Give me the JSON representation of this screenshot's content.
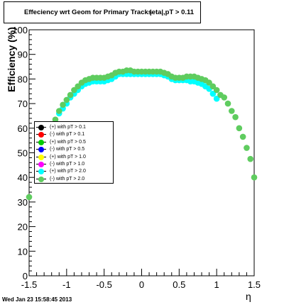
{
  "title": "Effeciency wrt Geom for Primary Tracks, pT > 0.11",
  "title_main": "Effeciency wrt Geom for Primary Tracks",
  "title_overlap": "|eta|,pT > 0.11",
  "footer": "Wed Jan 23 15:58:45 2013",
  "chart_data": {
    "type": "scatter",
    "title": "Effeciency wrt Geom for Primary Tracks, pT > 0.11",
    "xlabel": "η",
    "ylabel": "Efficiency (%)",
    "xlim": [
      -1.5,
      1.5
    ],
    "ylim": [
      0,
      100
    ],
    "x_ticks": [
      "-1.5",
      "-1",
      "-0.5",
      "0",
      "0.5",
      "1",
      "1.5"
    ],
    "y_ticks": [
      "0",
      "10",
      "20",
      "30",
      "40",
      "50",
      "60",
      "70",
      "80",
      "90",
      "100"
    ],
    "legend": [
      {
        "label": "(+) with pT > 0.1",
        "color": "#000000"
      },
      {
        "label": "(-) with pT > 0.1",
        "color": "#ff0000"
      },
      {
        "label": "(+) with pT > 0.5",
        "color": "#00cc00"
      },
      {
        "label": "(-) with pT > 0.5",
        "color": "#0000ff"
      },
      {
        "label": "(+) with pT > 1.0",
        "color": "#ffff00"
      },
      {
        "label": "(-) with pT > 1.0",
        "color": "#ff00ff"
      },
      {
        "label": "(+) with pT > 2.0",
        "color": "#00ffff"
      },
      {
        "label": "(-) with pT > 2.0",
        "color": "#5fcc5f"
      }
    ],
    "series": [
      {
        "name": "(+) with pT > 2.0",
        "color": "#00ffff",
        "x": [
          -1.1,
          -1.05,
          -1.0,
          -0.95,
          -0.9,
          -0.85,
          -0.8,
          -0.75,
          -0.7,
          -0.65,
          -0.6,
          -0.55,
          -0.5,
          -0.45,
          -0.4,
          -0.35,
          -0.3,
          -0.25,
          -0.2,
          -0.15,
          -0.1,
          -0.05,
          0.0,
          0.05,
          0.1,
          0.15,
          0.2,
          0.25,
          0.3,
          0.35,
          0.4,
          0.45,
          0.5,
          0.55,
          0.6,
          0.65,
          0.7,
          0.75,
          0.8,
          0.85,
          0.9,
          0.95,
          1.0
        ],
        "y": [
          66,
          68,
          70,
          72.5,
          74,
          75.5,
          77,
          78,
          78.5,
          79,
          79,
          79,
          79,
          79.5,
          80,
          81,
          82,
          82,
          82,
          82,
          82,
          82,
          82,
          82,
          82,
          82,
          82,
          82,
          81.5,
          81,
          80,
          79.5,
          79.5,
          79.5,
          79.5,
          79,
          79,
          78.5,
          78,
          77,
          76,
          74,
          72
        ]
      },
      {
        "name": "(-) with pT > 2.0",
        "color": "#5fcc5f",
        "x": [
          -1.5,
          -1.15,
          -1.1,
          -1.05,
          -1.0,
          -0.95,
          -0.9,
          -0.85,
          -0.8,
          -0.75,
          -0.7,
          -0.65,
          -0.6,
          -0.55,
          -0.5,
          -0.45,
          -0.4,
          -0.35,
          -0.3,
          -0.25,
          -0.2,
          -0.15,
          -0.1,
          -0.05,
          0.0,
          0.05,
          0.1,
          0.15,
          0.2,
          0.25,
          0.3,
          0.35,
          0.4,
          0.45,
          0.5,
          0.55,
          0.6,
          0.65,
          0.7,
          0.75,
          0.8,
          0.85,
          0.9,
          0.95,
          1.0,
          1.05,
          1.1,
          1.15,
          1.2,
          1.25,
          1.3,
          1.35,
          1.4,
          1.45,
          1.5
        ],
        "y": [
          32,
          63.5,
          67,
          69.5,
          71.5,
          73.5,
          75.5,
          77,
          78.5,
          79.5,
          80,
          80.5,
          80.5,
          80.5,
          80.5,
          81,
          81.5,
          82.5,
          83,
          83,
          83.5,
          83.5,
          83,
          83,
          83,
          83,
          83,
          83,
          83,
          83,
          82.5,
          82,
          81,
          80.5,
          80.5,
          80.5,
          81,
          81,
          81,
          80.5,
          80,
          79.5,
          78.5,
          77,
          75.5,
          73.5,
          72.5,
          70,
          67,
          64.5,
          60,
          56.5,
          52,
          47.5,
          40
        ]
      }
    ]
  }
}
